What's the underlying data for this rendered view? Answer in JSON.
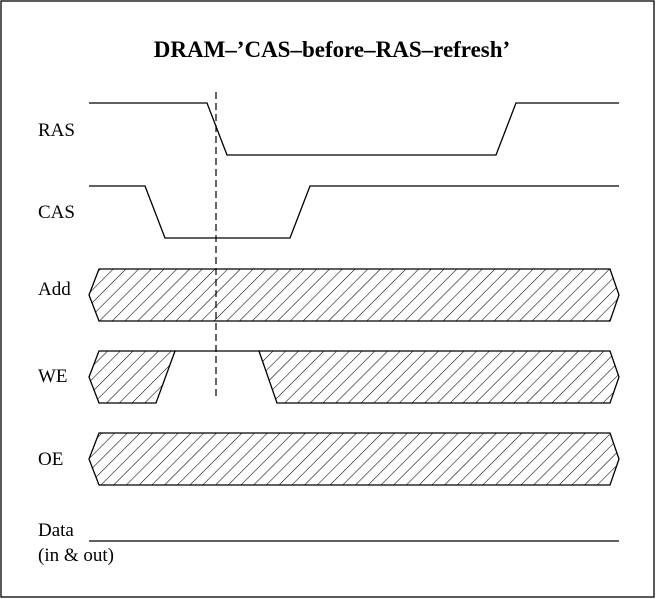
{
  "diagram": {
    "title": "DRAM–’CAS–before–RAS–refresh’",
    "signals": [
      {
        "id": "ras",
        "label": "RAS",
        "kind": "level"
      },
      {
        "id": "cas",
        "label": "CAS",
        "kind": "level"
      },
      {
        "id": "add",
        "label": "Add",
        "kind": "bus"
      },
      {
        "id": "we",
        "label": "WE",
        "kind": "bus"
      },
      {
        "id": "oe",
        "label": "OE",
        "kind": "bus"
      },
      {
        "id": "data",
        "label_lines": [
          "Data",
          "(in & out)"
        ],
        "kind": "line"
      }
    ],
    "colors": {
      "line": "#000000",
      "background": "#ffffff"
    }
  }
}
